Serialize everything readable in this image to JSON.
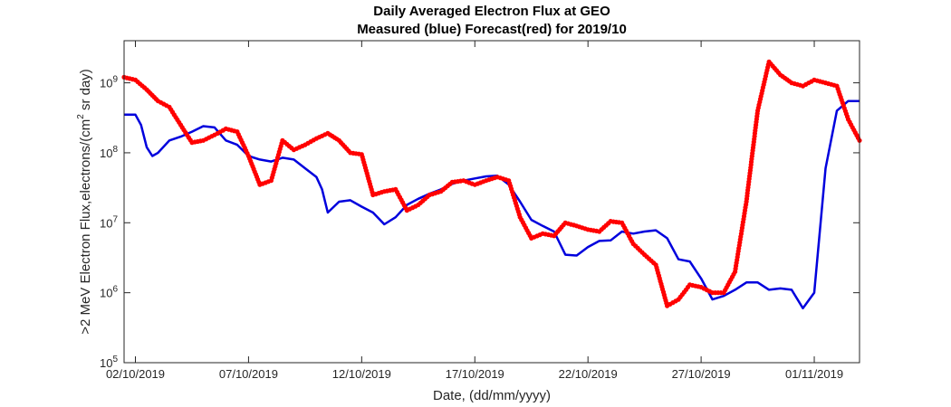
{
  "chart_data": {
    "type": "line",
    "title": "Daily Averaged Electron Flux at GEO",
    "subtitle": "Measured (blue) Forecast(red) for 2019/10",
    "xlabel": "Date, (dd/mm/yyyy)",
    "ylabel_parts": [
      ">2 MeV Electron Flux,electrons/(cm",
      "2",
      " sr day)"
    ],
    "yscale": "log",
    "xlim": [
      "2019-10-01T12:00",
      "2019-11-03T00:00"
    ],
    "ylim": [
      100000,
      4000000000
    ],
    "grid": false,
    "x_ticks": [
      {
        "date": "2019-10-02",
        "label": "02/10/2019"
      },
      {
        "date": "2019-10-07",
        "label": "07/10/2019"
      },
      {
        "date": "2019-10-12",
        "label": "12/10/2019"
      },
      {
        "date": "2019-10-17",
        "label": "17/10/2019"
      },
      {
        "date": "2019-10-22",
        "label": "22/10/2019"
      },
      {
        "date": "2019-10-27",
        "label": "27/10/2019"
      },
      {
        "date": "2019-11-01",
        "label": "01/11/2019"
      }
    ],
    "y_ticks": [
      {
        "value": 100000,
        "base": "10",
        "exp": "5"
      },
      {
        "value": 1000000,
        "base": "10",
        "exp": "6"
      },
      {
        "value": 10000000,
        "base": "10",
        "exp": "7"
      },
      {
        "value": 100000000,
        "base": "10",
        "exp": "8"
      },
      {
        "value": 1000000000,
        "base": "10",
        "exp": "9"
      }
    ],
    "series": [
      {
        "style": "line",
        "color": "#0000dd",
        "points": [
          [
            "2019-10-01T12:00",
            350000000
          ],
          [
            "2019-10-02T00:00",
            350000000
          ],
          [
            "2019-10-02T06:00",
            250000000
          ],
          [
            "2019-10-02T12:00",
            120000000
          ],
          [
            "2019-10-02T18:00",
            90000000
          ],
          [
            "2019-10-03T00:00",
            100000000
          ],
          [
            "2019-10-03T12:00",
            150000000
          ],
          [
            "2019-10-04T00:00",
            170000000
          ],
          [
            "2019-10-04T12:00",
            200000000
          ],
          [
            "2019-10-05T00:00",
            240000000
          ],
          [
            "2019-10-05T12:00",
            230000000
          ],
          [
            "2019-10-06T00:00",
            150000000
          ],
          [
            "2019-10-06T12:00",
            130000000
          ],
          [
            "2019-10-07T00:00",
            90000000
          ],
          [
            "2019-10-07T12:00",
            80000000
          ],
          [
            "2019-10-08T00:00",
            75000000
          ],
          [
            "2019-10-08T12:00",
            85000000
          ],
          [
            "2019-10-09T00:00",
            80000000
          ],
          [
            "2019-10-09T12:00",
            60000000
          ],
          [
            "2019-10-10T00:00",
            45000000
          ],
          [
            "2019-10-10T06:00",
            30000000
          ],
          [
            "2019-10-10T12:00",
            14000000
          ],
          [
            "2019-10-11T00:00",
            20000000
          ],
          [
            "2019-10-11T12:00",
            21000000
          ],
          [
            "2019-10-12T00:00",
            17000000
          ],
          [
            "2019-10-12T12:00",
            14000000
          ],
          [
            "2019-10-13T00:00",
            9500000
          ],
          [
            "2019-10-13T12:00",
            12000000
          ],
          [
            "2019-10-14T00:00",
            18000000
          ],
          [
            "2019-10-14T12:00",
            22000000
          ],
          [
            "2019-10-15T00:00",
            26000000
          ],
          [
            "2019-10-15T12:00",
            30000000
          ],
          [
            "2019-10-16T00:00",
            36000000
          ],
          [
            "2019-10-16T12:00",
            40000000
          ],
          [
            "2019-10-17T00:00",
            43000000
          ],
          [
            "2019-10-17T12:00",
            46000000
          ],
          [
            "2019-10-18T00:00",
            47000000
          ],
          [
            "2019-10-18T12:00",
            35000000
          ],
          [
            "2019-10-19T00:00",
            20000000
          ],
          [
            "2019-10-19T12:00",
            11000000
          ],
          [
            "2019-10-20T00:00",
            9000000
          ],
          [
            "2019-10-20T12:00",
            7500000
          ],
          [
            "2019-10-21T00:00",
            3500000
          ],
          [
            "2019-10-21T12:00",
            3400000
          ],
          [
            "2019-10-22T00:00",
            4500000
          ],
          [
            "2019-10-22T12:00",
            5500000
          ],
          [
            "2019-10-23T00:00",
            5600000
          ],
          [
            "2019-10-23T12:00",
            7500000
          ],
          [
            "2019-10-24T00:00",
            7000000
          ],
          [
            "2019-10-24T12:00",
            7500000
          ],
          [
            "2019-10-25T00:00",
            7800000
          ],
          [
            "2019-10-25T12:00",
            6000000
          ],
          [
            "2019-10-26T00:00",
            3000000
          ],
          [
            "2019-10-26T12:00",
            2800000
          ],
          [
            "2019-10-27T00:00",
            1600000
          ],
          [
            "2019-10-27T12:00",
            800000
          ],
          [
            "2019-10-28T00:00",
            900000
          ],
          [
            "2019-10-28T12:00",
            1100000
          ],
          [
            "2019-10-29T00:00",
            1400000
          ],
          [
            "2019-10-29T12:00",
            1400000
          ],
          [
            "2019-10-30T00:00",
            1100000
          ],
          [
            "2019-10-30T12:00",
            1150000
          ],
          [
            "2019-10-31T00:00",
            1100000
          ],
          [
            "2019-10-31T12:00",
            600000
          ],
          [
            "2019-11-01T00:00",
            1000000
          ],
          [
            "2019-11-01T12:00",
            60000000
          ],
          [
            "2019-11-02T00:00",
            400000000
          ],
          [
            "2019-11-02T12:00",
            550000000
          ],
          [
            "2019-11-03T00:00",
            550000000
          ]
        ]
      },
      {
        "style": "markers",
        "color": "#ff0000",
        "points": [
          [
            "2019-10-01T12:00",
            1200000000
          ],
          [
            "2019-10-02T00:00",
            1100000000
          ],
          [
            "2019-10-02T12:00",
            800000000
          ],
          [
            "2019-10-03T00:00",
            550000000
          ],
          [
            "2019-10-03T12:00",
            450000000
          ],
          [
            "2019-10-04T00:00",
            250000000
          ],
          [
            "2019-10-04T12:00",
            140000000
          ],
          [
            "2019-10-05T00:00",
            150000000
          ],
          [
            "2019-10-05T12:00",
            180000000
          ],
          [
            "2019-10-06T00:00",
            220000000
          ],
          [
            "2019-10-06T12:00",
            200000000
          ],
          [
            "2019-10-07T00:00",
            90000000
          ],
          [
            "2019-10-07T12:00",
            35000000
          ],
          [
            "2019-10-08T00:00",
            40000000
          ],
          [
            "2019-10-08T12:00",
            150000000
          ],
          [
            "2019-10-09T00:00",
            110000000
          ],
          [
            "2019-10-09T12:00",
            130000000
          ],
          [
            "2019-10-10T00:00",
            160000000
          ],
          [
            "2019-10-10T12:00",
            190000000
          ],
          [
            "2019-10-11T00:00",
            150000000
          ],
          [
            "2019-10-11T12:00",
            100000000
          ],
          [
            "2019-10-12T00:00",
            95000000
          ],
          [
            "2019-10-12T12:00",
            25000000
          ],
          [
            "2019-10-13T00:00",
            28000000
          ],
          [
            "2019-10-13T12:00",
            30000000
          ],
          [
            "2019-10-14T00:00",
            15000000
          ],
          [
            "2019-10-14T12:00",
            18000000
          ],
          [
            "2019-10-15T00:00",
            25000000
          ],
          [
            "2019-10-15T12:00",
            28000000
          ],
          [
            "2019-10-16T00:00",
            38000000
          ],
          [
            "2019-10-16T12:00",
            40000000
          ],
          [
            "2019-10-17T00:00",
            35000000
          ],
          [
            "2019-10-17T12:00",
            40000000
          ],
          [
            "2019-10-18T00:00",
            45000000
          ],
          [
            "2019-10-18T12:00",
            40000000
          ],
          [
            "2019-10-19T00:00",
            12000000
          ],
          [
            "2019-10-19T12:00",
            6000000
          ],
          [
            "2019-10-20T00:00",
            7000000
          ],
          [
            "2019-10-20T12:00",
            6500000
          ],
          [
            "2019-10-21T00:00",
            10000000
          ],
          [
            "2019-10-21T12:00",
            9000000
          ],
          [
            "2019-10-22T00:00",
            8000000
          ],
          [
            "2019-10-22T12:00",
            7500000
          ],
          [
            "2019-10-23T00:00",
            10500000
          ],
          [
            "2019-10-23T12:00",
            10000000
          ],
          [
            "2019-10-24T00:00",
            5000000
          ],
          [
            "2019-10-24T12:00",
            3500000
          ],
          [
            "2019-10-25T00:00",
            2500000
          ],
          [
            "2019-10-25T12:00",
            650000
          ],
          [
            "2019-10-26T00:00",
            800000
          ],
          [
            "2019-10-26T12:00",
            1300000
          ],
          [
            "2019-10-27T00:00",
            1200000
          ],
          [
            "2019-10-27T12:00",
            1000000
          ],
          [
            "2019-10-28T00:00",
            1000000
          ],
          [
            "2019-10-28T12:00",
            2000000
          ],
          [
            "2019-10-29T00:00",
            20000000
          ],
          [
            "2019-10-29T12:00",
            400000000
          ],
          [
            "2019-10-30T00:00",
            2000000000
          ],
          [
            "2019-10-30T12:00",
            1300000000
          ],
          [
            "2019-10-31T00:00",
            1000000000
          ],
          [
            "2019-10-31T12:00",
            900000000
          ],
          [
            "2019-11-01T00:00",
            1100000000
          ],
          [
            "2019-11-01T12:00",
            1000000000
          ],
          [
            "2019-11-02T00:00",
            900000000
          ],
          [
            "2019-11-02T12:00",
            300000000
          ],
          [
            "2019-11-03T00:00",
            150000000
          ]
        ]
      }
    ]
  }
}
